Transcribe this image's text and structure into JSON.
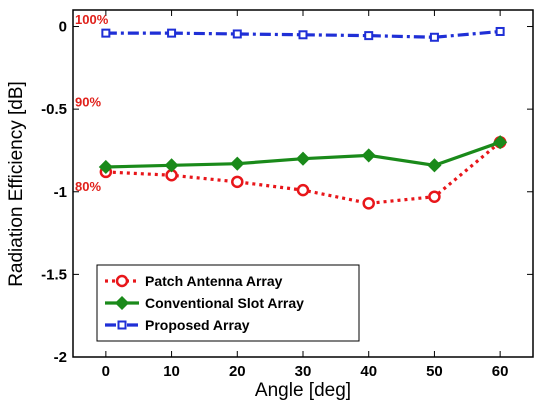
{
  "chart_data": {
    "type": "line",
    "xlabel": "Angle [deg]",
    "ylabel": "Radiation Efficiency [dB]",
    "xlim": [
      -5,
      65
    ],
    "ylim": [
      -2,
      0.1
    ],
    "x_ticks": [
      0,
      10,
      20,
      30,
      40,
      50,
      60
    ],
    "y_ticks": [
      0,
      -0.5,
      -1,
      -1.5,
      -2
    ],
    "y_tick_labels": [
      "0",
      "-0.5",
      "-1",
      "-1.5",
      "-2"
    ],
    "grid": false,
    "legend_position": "bottom-left",
    "annotations": [
      {
        "text": "100%",
        "y": 0.04,
        "color": "#e0201a"
      },
      {
        "text": "90%",
        "y": -0.46,
        "color": "#e0201a"
      },
      {
        "text": "80%",
        "y": -0.97,
        "color": "#e0201a"
      }
    ],
    "x": [
      0,
      10,
      20,
      30,
      40,
      50,
      60
    ],
    "series": [
      {
        "name": "Patch Antenna Array",
        "values": [
          -0.88,
          -0.9,
          -0.94,
          -0.99,
          -1.07,
          -1.03,
          -0.7
        ],
        "color": "#e8161a",
        "line_style": "dotted",
        "marker": "circle"
      },
      {
        "name": "Conventional Slot Array",
        "values": [
          -0.85,
          -0.84,
          -0.83,
          -0.8,
          -0.78,
          -0.84,
          -0.7
        ],
        "color": "#1a8a1a",
        "line_style": "solid",
        "marker": "diamond"
      },
      {
        "name": "Proposed Array",
        "values": [
          -0.04,
          -0.04,
          -0.045,
          -0.05,
          -0.055,
          -0.065,
          -0.03
        ],
        "color": "#1f2fd6",
        "line_style": "dash-dot",
        "marker": "square"
      }
    ]
  }
}
